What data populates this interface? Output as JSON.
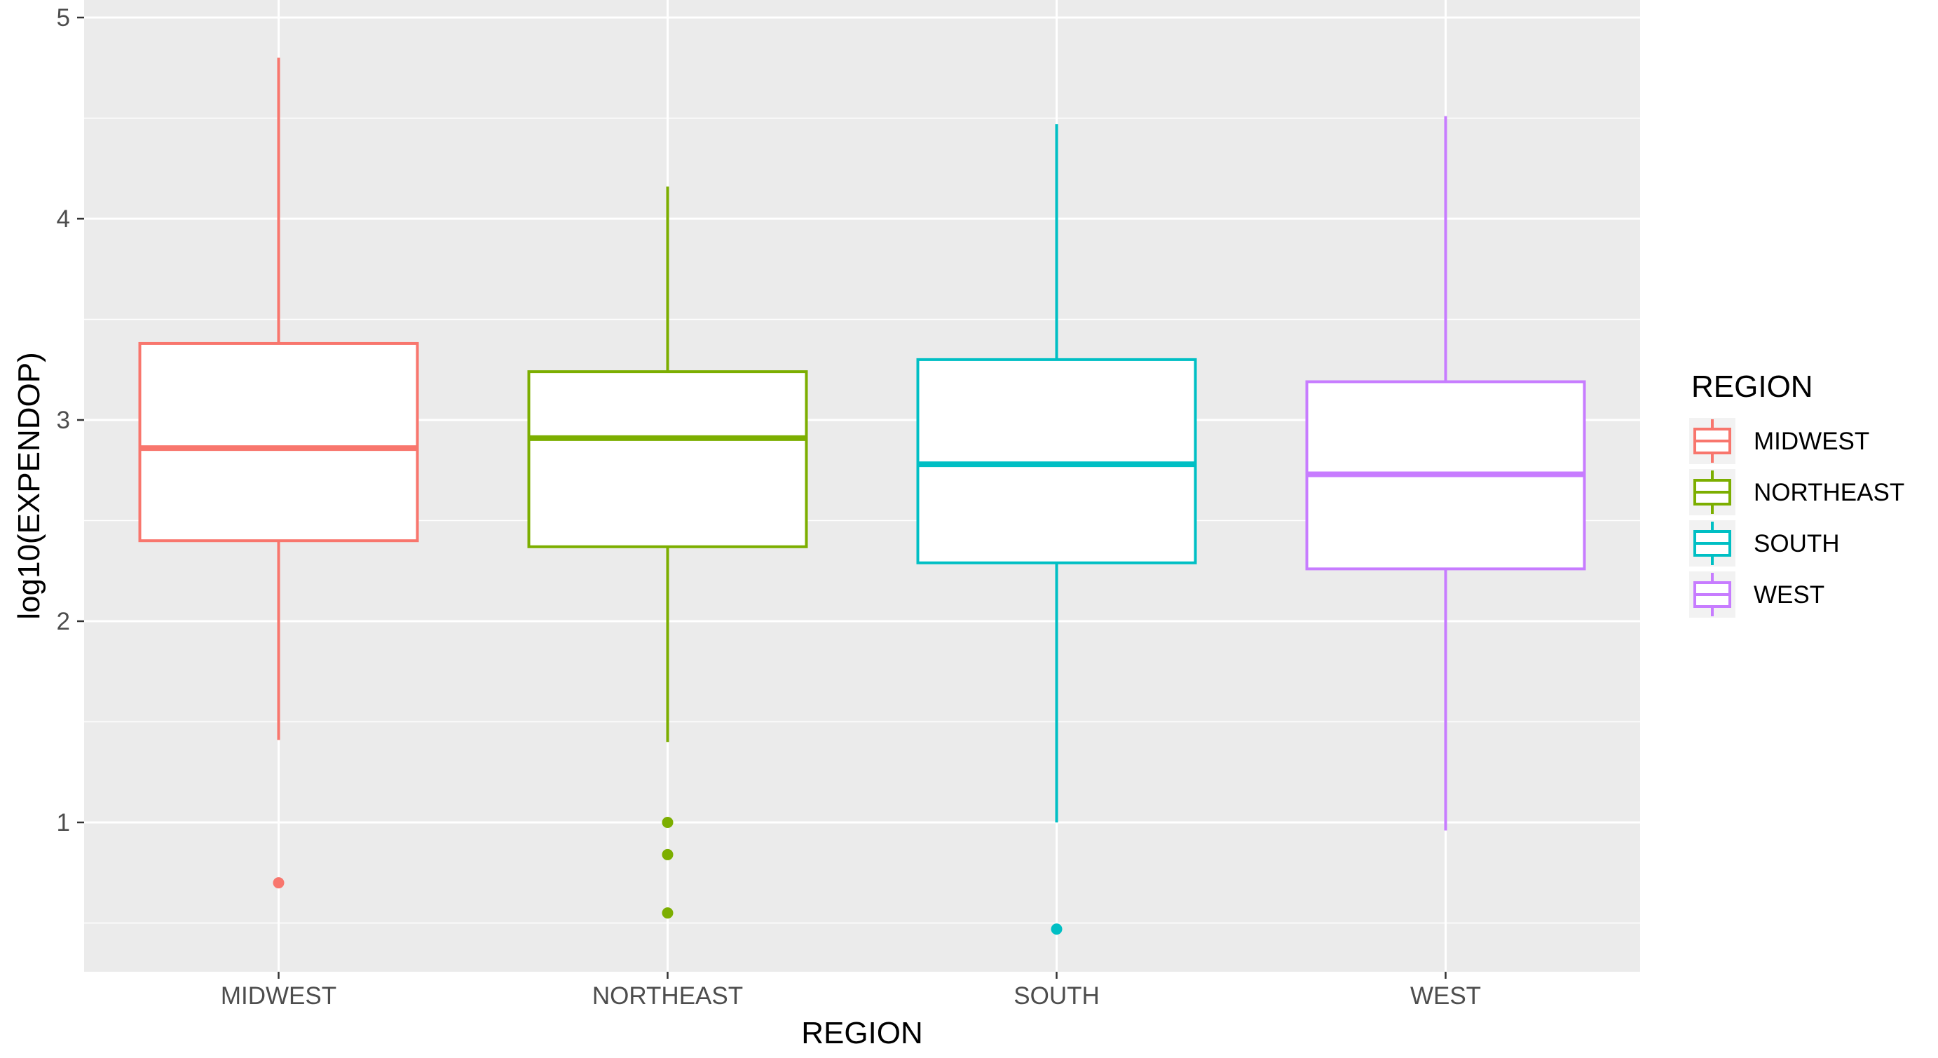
{
  "chart_data": {
    "type": "boxplot",
    "title": "",
    "xlabel": "REGION",
    "ylabel": "log10(EXPENDOP)",
    "ylim": [
      0.25,
      5.0
    ],
    "yticks": [
      1,
      2,
      3,
      4,
      5
    ],
    "grid": true,
    "legend": {
      "title": "REGION",
      "placement": "right",
      "entries": [
        "MIDWEST",
        "NORTHEAST",
        "SOUTH",
        "WEST"
      ]
    },
    "categories": [
      "MIDWEST",
      "NORTHEAST",
      "SOUTH",
      "WEST"
    ],
    "series": [
      {
        "name": "MIDWEST",
        "color": "#F8766D",
        "whisker_low": 1.41,
        "q1": 2.4,
        "median": 2.86,
        "q3": 3.38,
        "whisker_high": 4.8,
        "outliers": [
          0.7
        ]
      },
      {
        "name": "NORTHEAST",
        "color": "#7CAE00",
        "whisker_low": 1.4,
        "q1": 2.37,
        "median": 2.91,
        "q3": 3.24,
        "whisker_high": 4.16,
        "outliers": [
          1.0,
          0.84,
          0.55
        ]
      },
      {
        "name": "SOUTH",
        "color": "#00BFC4",
        "whisker_low": 1.0,
        "q1": 2.29,
        "median": 2.78,
        "q3": 3.3,
        "whisker_high": 4.47,
        "outliers": [
          0.47
        ]
      },
      {
        "name": "WEST",
        "color": "#C77CFF",
        "whisker_low": 0.96,
        "q1": 2.26,
        "median": 2.73,
        "q3": 3.19,
        "whisker_high": 4.51,
        "outliers": []
      }
    ]
  }
}
